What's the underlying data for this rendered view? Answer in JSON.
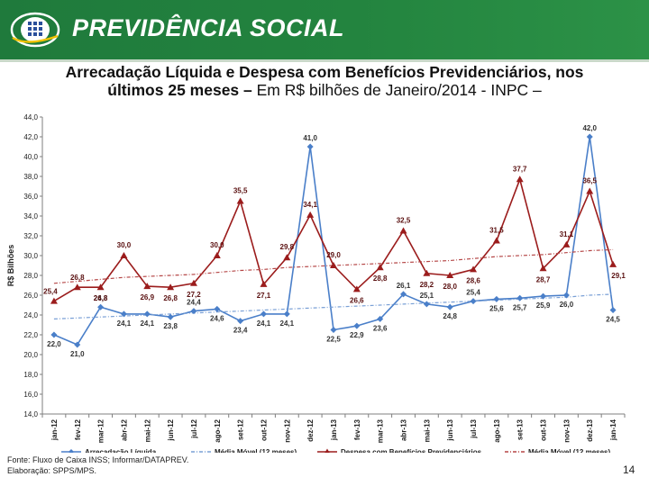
{
  "header": {
    "brand": "PREVIDÊNCIA SOCIAL"
  },
  "title": {
    "bold_line1": "Arrecadação Líquida e Despesa com Benefícios Previdenciários, nos",
    "bold_line2": "últimos 25 meses –",
    "normal_line2": " Em R$ bilhões de Janeiro/2014 - INPC –"
  },
  "chart_data": {
    "type": "line",
    "ylabel": "R$ Bilhões",
    "ylim": [
      14,
      44
    ],
    "yticks": [
      "14,0",
      "16,0",
      "18,0",
      "20,0",
      "22,0",
      "24,0",
      "26,0",
      "28,0",
      "30,0",
      "32,0",
      "34,0",
      "36,0",
      "38,0",
      "40,0",
      "42,0",
      "44,0"
    ],
    "grid": false,
    "legend_position": "bottom",
    "categories": [
      "jan-12",
      "fev-12",
      "mar-12",
      "abr-12",
      "mai-12",
      "jun-12",
      "jul-12",
      "ago-12",
      "set-12",
      "out-12",
      "nov-12",
      "dez-12",
      "jan-13",
      "fev-13",
      "mar-13",
      "abr-13",
      "mai-13",
      "jun-13",
      "jul-13",
      "ago-13",
      "set-13",
      "out-13",
      "nov-13",
      "dez-13",
      "jan-14"
    ],
    "series": [
      {
        "name": "Arrecadação Líquida",
        "color": "#4a7fc9",
        "marker": "diamond",
        "values": [
          22.0,
          21.0,
          24.8,
          24.1,
          24.1,
          23.8,
          24.4,
          24.6,
          23.4,
          24.1,
          24.1,
          41.0,
          22.5,
          22.9,
          23.6,
          26.1,
          25.1,
          24.8,
          25.4,
          25.6,
          25.7,
          25.9,
          26.0,
          42.0,
          24.5
        ],
        "labels": [
          "22,0",
          "21,0",
          "24,8",
          "24,1",
          "24,1",
          "23,8",
          "24,4",
          "24,6",
          "23,4",
          "24,1",
          "24,1",
          "41,0",
          "22,5",
          "22,9",
          "23,6",
          "26,1",
          "25,1",
          "24,8",
          "25,4",
          "25,6",
          "25,7",
          "25,9",
          "26,0",
          "42,0",
          "24,5"
        ]
      },
      {
        "name": "Média Móvel (12 meses)",
        "color": "#7aa0d6",
        "dashed": true,
        "values": [
          23.6,
          23.7,
          23.8,
          23.9,
          24.0,
          24.1,
          24.2,
          24.3,
          24.4,
          24.5,
          24.6,
          24.7,
          24.8,
          24.9,
          25.0,
          25.1,
          25.2,
          25.3,
          25.4,
          25.5,
          25.6,
          25.7,
          25.8,
          26.0,
          26.1
        ]
      },
      {
        "name": "Despesa com Benefícios Previdenciários",
        "color": "#9b1c1c",
        "marker": "triangle",
        "values": [
          25.4,
          26.8,
          26.8,
          30.0,
          26.9,
          26.8,
          27.2,
          30.0,
          35.5,
          27.1,
          29.8,
          34.1,
          29.0,
          26.6,
          28.8,
          32.5,
          28.2,
          28.0,
          28.6,
          31.5,
          37.7,
          28.7,
          31.1,
          36.5,
          29.1
        ],
        "labels": [
          "25,4",
          "26,8",
          "26,8",
          "30,0",
          "26,9",
          "26,8",
          "27,2",
          "30,0",
          "35,5",
          "27,1",
          "29,8",
          "34,1",
          "29,0",
          "26,6",
          "28,8",
          "32,5",
          "28,2",
          "28,0",
          "28,6",
          "31,5",
          "37,7",
          "28,7",
          "31,1",
          "36,5",
          "29,1"
        ]
      },
      {
        "name": "Média Móvel (12 meses)",
        "color": "#b54747",
        "dashed": true,
        "values": [
          27.2,
          27.4,
          27.6,
          27.8,
          27.9,
          28.0,
          28.1,
          28.3,
          28.5,
          28.6,
          28.8,
          28.9,
          29.0,
          29.1,
          29.2,
          29.3,
          29.4,
          29.5,
          29.7,
          29.9,
          30.0,
          30.1,
          30.3,
          30.5,
          30.6
        ]
      }
    ]
  },
  "footer": {
    "source": "Fonte: Fluxo de Caixa INSS; Informar/DATAPREV.",
    "elaboration": "Elaboração: SPPS/MPS.",
    "page_number": "14"
  }
}
